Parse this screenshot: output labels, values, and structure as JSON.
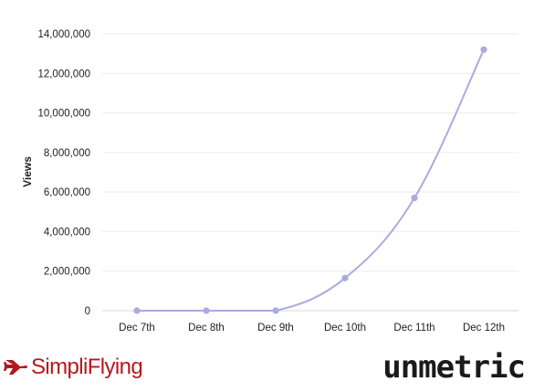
{
  "chart_data": {
    "type": "line",
    "categories": [
      "Dec 7th",
      "Dec 8th",
      "Dec 9th",
      "Dec 10th",
      "Dec 11th",
      "Dec 12th"
    ],
    "series": [
      {
        "values": [
          0,
          0,
          0,
          1650000,
          5700000,
          13200000
        ]
      }
    ],
    "ylabel": "Views",
    "ylim": [
      0,
      14000000
    ],
    "yticks": [
      {
        "value": 0,
        "label": "0"
      },
      {
        "value": 2000000,
        "label": "2,000,000"
      },
      {
        "value": 4000000,
        "label": "4,000,000"
      },
      {
        "value": 6000000,
        "label": "6,000,000"
      },
      {
        "value": 8000000,
        "label": "8,000,000"
      },
      {
        "value": 10000000,
        "label": "10,000,000"
      },
      {
        "value": 12000000,
        "label": "12,000,000"
      },
      {
        "value": 14000000,
        "label": "14,000,000"
      }
    ],
    "grid": true,
    "line_color": "#a9acdf",
    "grid_color": "#ececec"
  },
  "logos": {
    "left_text": "SimpliFlying",
    "left_color": "#b5181e",
    "right_text": "unmetric"
  }
}
